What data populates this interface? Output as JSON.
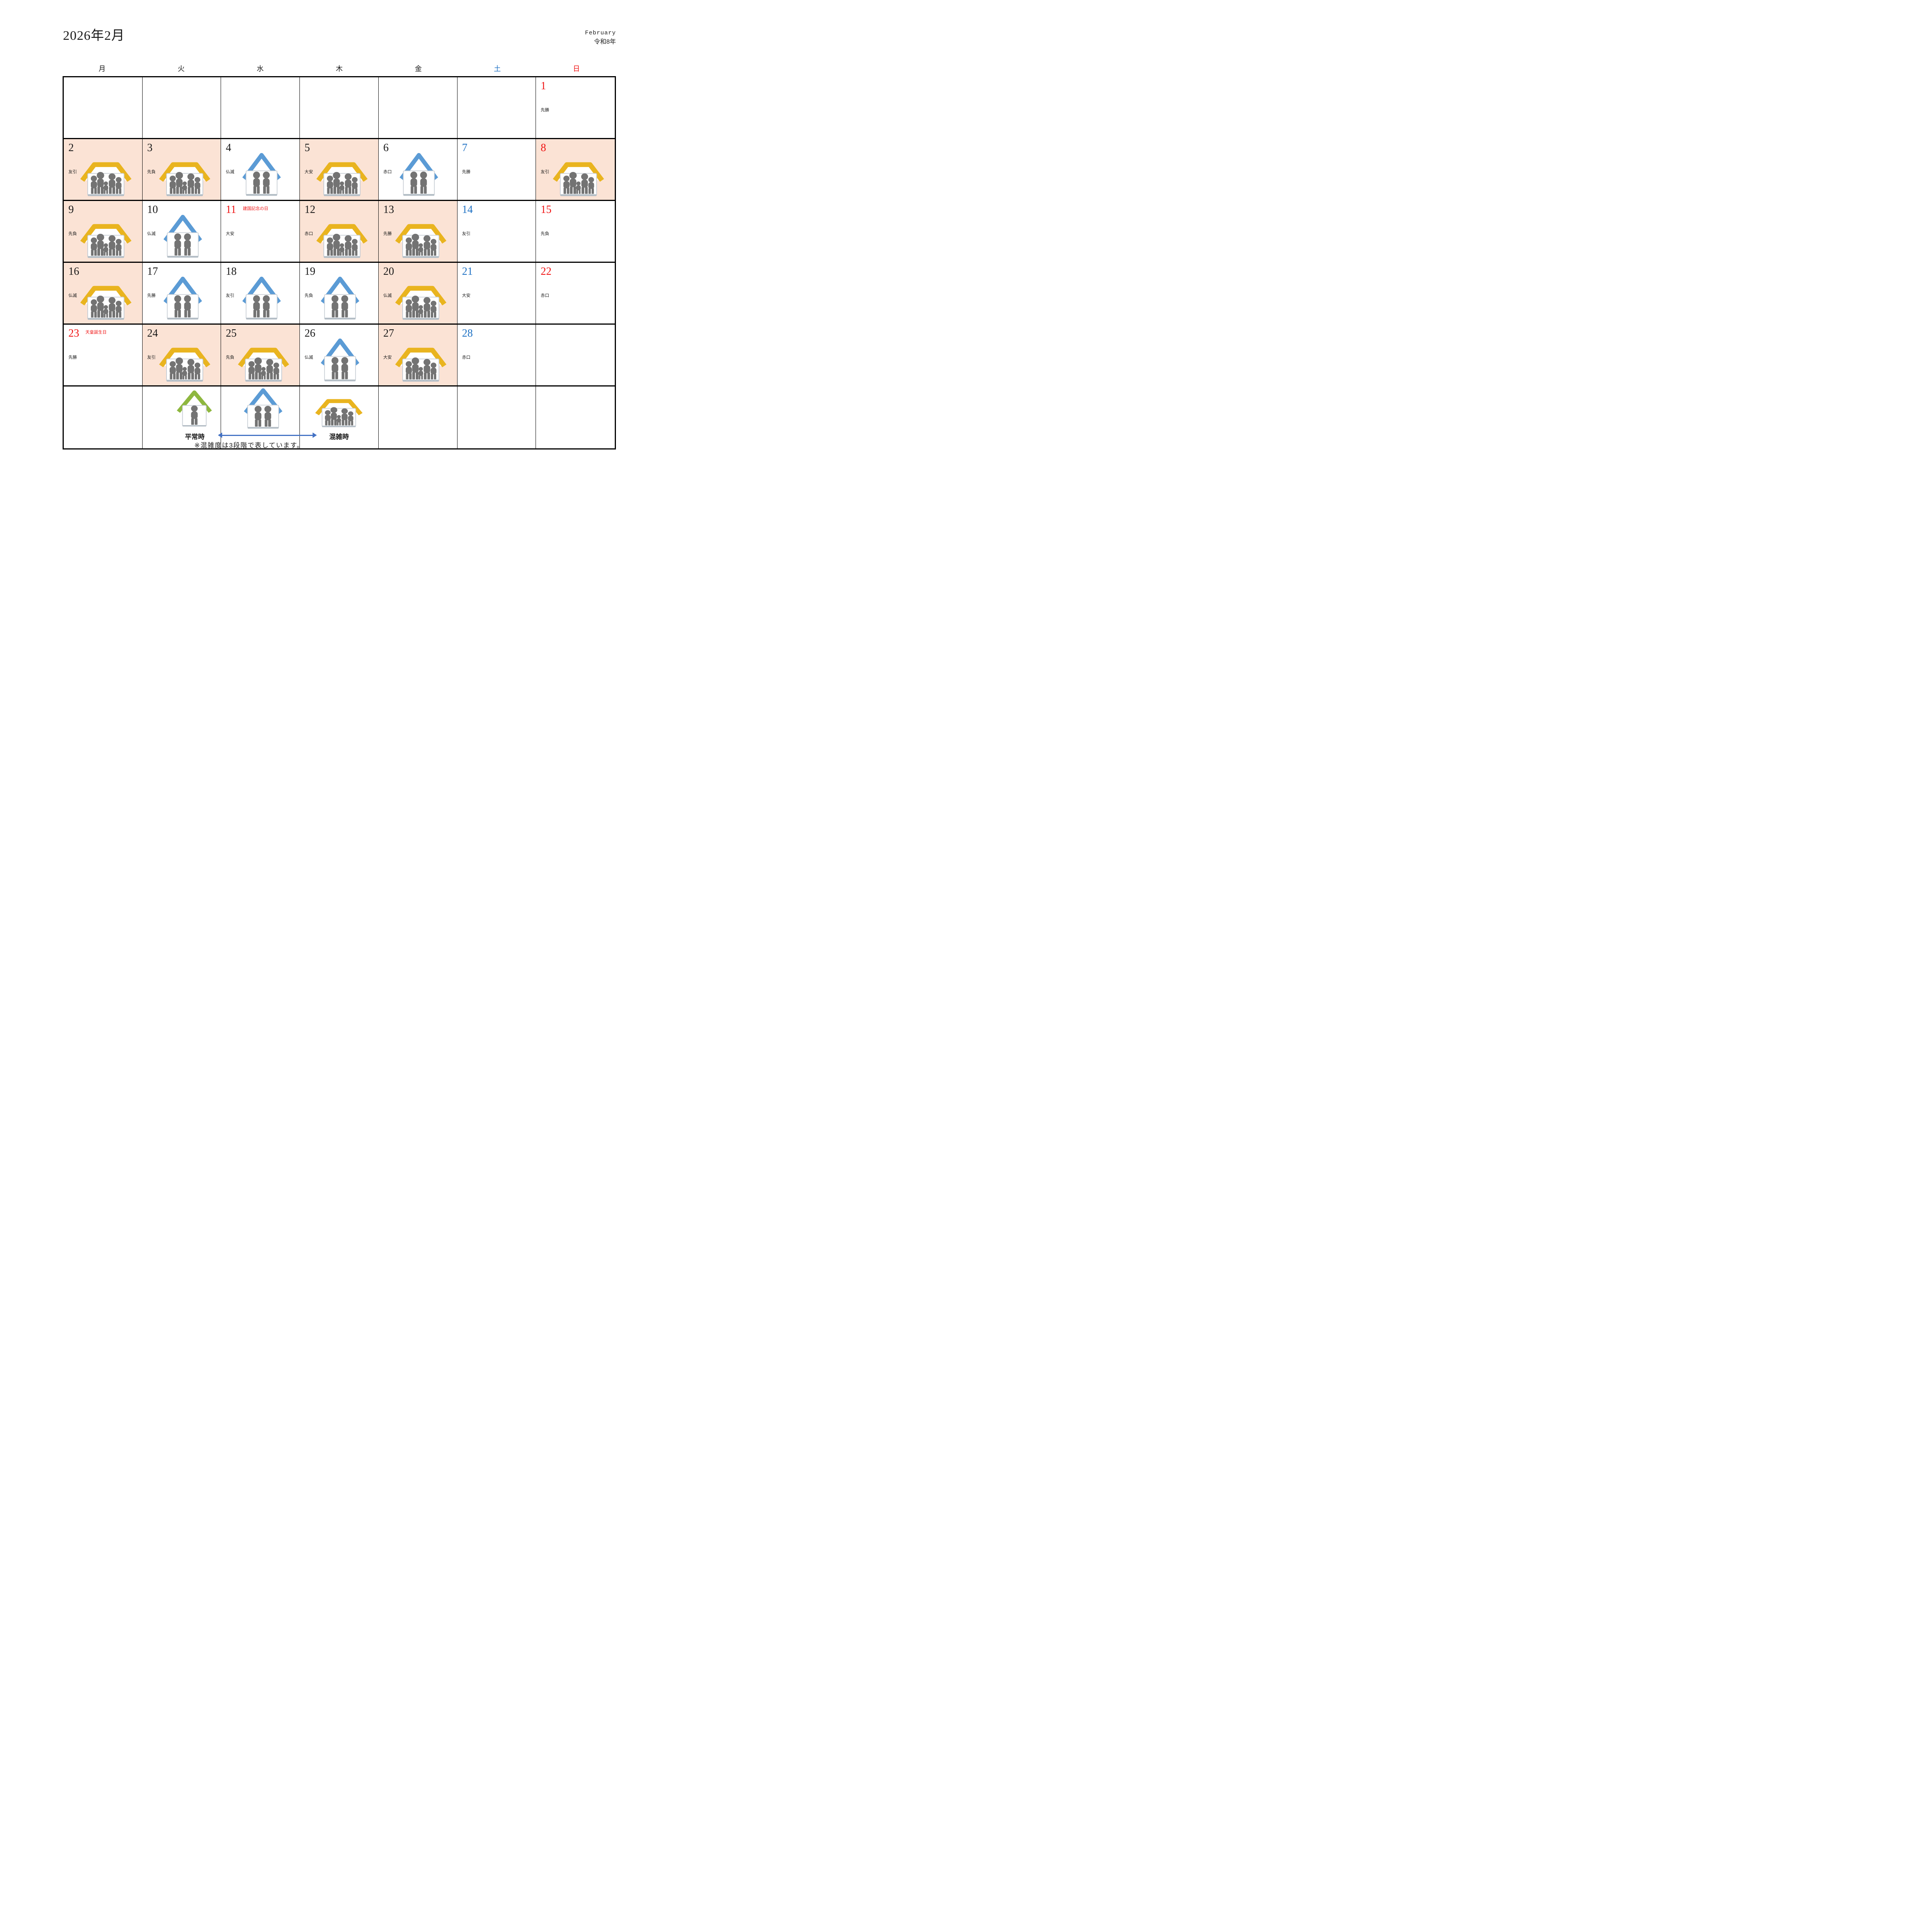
{
  "header": {
    "title": "2026年2月",
    "month_en": "February",
    "era_year": "令和8年"
  },
  "weekday_headers": [
    {
      "label": "月",
      "color": "#1a1a1a"
    },
    {
      "label": "火",
      "color": "#1a1a1a"
    },
    {
      "label": "水",
      "color": "#1a1a1a"
    },
    {
      "label": "木",
      "color": "#1a1a1a"
    },
    {
      "label": "金",
      "color": "#1a1a1a"
    },
    {
      "label": "土",
      "color": "#1F72C4"
    },
    {
      "label": "日",
      "color": "#F01212"
    }
  ],
  "days": [
    {
      "date": 1,
      "row": 0,
      "col": 6,
      "number_color": "red",
      "rokuyo": "先勝",
      "congestion": "none",
      "highlighted": false,
      "holiday": null
    },
    {
      "date": 2,
      "row": 1,
      "col": 0,
      "number_color": "black",
      "rokuyo": "友引",
      "congestion": "busy",
      "highlighted": true,
      "holiday": null
    },
    {
      "date": 3,
      "row": 1,
      "col": 1,
      "number_color": "black",
      "rokuyo": "先負",
      "congestion": "busy",
      "highlighted": true,
      "holiday": null
    },
    {
      "date": 4,
      "row": 1,
      "col": 2,
      "number_color": "black",
      "rokuyo": "仏滅",
      "congestion": "medium",
      "highlighted": false,
      "holiday": null
    },
    {
      "date": 5,
      "row": 1,
      "col": 3,
      "number_color": "black",
      "rokuyo": "大安",
      "congestion": "busy",
      "highlighted": true,
      "holiday": null
    },
    {
      "date": 6,
      "row": 1,
      "col": 4,
      "number_color": "black",
      "rokuyo": "赤口",
      "congestion": "medium",
      "highlighted": false,
      "holiday": null
    },
    {
      "date": 7,
      "row": 1,
      "col": 5,
      "number_color": "blue",
      "rokuyo": "先勝",
      "congestion": "none",
      "highlighted": false,
      "holiday": null
    },
    {
      "date": 8,
      "row": 1,
      "col": 6,
      "number_color": "red",
      "rokuyo": "友引",
      "congestion": "busy",
      "highlighted": true,
      "holiday": null
    },
    {
      "date": 9,
      "row": 2,
      "col": 0,
      "number_color": "black",
      "rokuyo": "先負",
      "congestion": "busy",
      "highlighted": true,
      "holiday": null
    },
    {
      "date": 10,
      "row": 2,
      "col": 1,
      "number_color": "black",
      "rokuyo": "仏滅",
      "congestion": "medium",
      "highlighted": false,
      "holiday": null
    },
    {
      "date": 11,
      "row": 2,
      "col": 2,
      "number_color": "red",
      "rokuyo": "大安",
      "congestion": "none",
      "highlighted": false,
      "holiday": "建国記念の日"
    },
    {
      "date": 12,
      "row": 2,
      "col": 3,
      "number_color": "black",
      "rokuyo": "赤口",
      "congestion": "busy",
      "highlighted": true,
      "holiday": null
    },
    {
      "date": 13,
      "row": 2,
      "col": 4,
      "number_color": "black",
      "rokuyo": "先勝",
      "congestion": "busy",
      "highlighted": true,
      "holiday": null
    },
    {
      "date": 14,
      "row": 2,
      "col": 5,
      "number_color": "blue",
      "rokuyo": "友引",
      "congestion": "none",
      "highlighted": false,
      "holiday": null
    },
    {
      "date": 15,
      "row": 2,
      "col": 6,
      "number_color": "red",
      "rokuyo": "先負",
      "congestion": "none",
      "highlighted": false,
      "holiday": null
    },
    {
      "date": 16,
      "row": 3,
      "col": 0,
      "number_color": "black",
      "rokuyo": "仏滅",
      "congestion": "busy",
      "highlighted": true,
      "holiday": null
    },
    {
      "date": 17,
      "row": 3,
      "col": 1,
      "number_color": "black",
      "rokuyo": "先勝",
      "congestion": "medium",
      "highlighted": false,
      "holiday": null
    },
    {
      "date": 18,
      "row": 3,
      "col": 2,
      "number_color": "black",
      "rokuyo": "友引",
      "congestion": "medium",
      "highlighted": false,
      "holiday": null
    },
    {
      "date": 19,
      "row": 3,
      "col": 3,
      "number_color": "black",
      "rokuyo": "先負",
      "congestion": "medium",
      "highlighted": false,
      "holiday": null
    },
    {
      "date": 20,
      "row": 3,
      "col": 4,
      "number_color": "black",
      "rokuyo": "仏滅",
      "congestion": "busy",
      "highlighted": true,
      "holiday": null
    },
    {
      "date": 21,
      "row": 3,
      "col": 5,
      "number_color": "blue",
      "rokuyo": "大安",
      "congestion": "none",
      "highlighted": false,
      "holiday": null
    },
    {
      "date": 22,
      "row": 3,
      "col": 6,
      "number_color": "red",
      "rokuyo": "赤口",
      "congestion": "none",
      "highlighted": false,
      "holiday": null
    },
    {
      "date": 23,
      "row": 4,
      "col": 0,
      "number_color": "red",
      "rokuyo": "先勝",
      "congestion": "none",
      "highlighted": false,
      "holiday": "天皇誕生日"
    },
    {
      "date": 24,
      "row": 4,
      "col": 1,
      "number_color": "black",
      "rokuyo": "友引",
      "congestion": "busy",
      "highlighted": true,
      "holiday": null
    },
    {
      "date": 25,
      "row": 4,
      "col": 2,
      "number_color": "black",
      "rokuyo": "先負",
      "congestion": "busy",
      "highlighted": true,
      "holiday": null
    },
    {
      "date": 26,
      "row": 4,
      "col": 3,
      "number_color": "black",
      "rokuyo": "仏滅",
      "congestion": "medium",
      "highlighted": false,
      "holiday": null
    },
    {
      "date": 27,
      "row": 4,
      "col": 4,
      "number_color": "black",
      "rokuyo": "大安",
      "congestion": "busy",
      "highlighted": true,
      "holiday": null
    },
    {
      "date": 28,
      "row": 4,
      "col": 5,
      "number_color": "blue",
      "rokuyo": "赤口",
      "congestion": "none",
      "highlighted": false,
      "holiday": null
    }
  ],
  "legend": {
    "normal_label": "平常時",
    "busy_label": "混雑時",
    "note": "※混雑度は3段階で表しています。",
    "levels": [
      {
        "level": "normal",
        "icon": "single-person-house-icon",
        "people": 1,
        "roof": "green"
      },
      {
        "level": "medium",
        "icon": "two-person-house-icon",
        "people": 2,
        "roof": "blue"
      },
      {
        "level": "busy",
        "icon": "crowded-house-icon",
        "people": 5,
        "roof": "gold"
      }
    ]
  },
  "colors": {
    "peach_highlight": "#FBE3D5",
    "roof_busy_gold": "#E9B41F",
    "roof_medium_blue": "#5B9BD5",
    "roof_normal_green": "#8EB73F",
    "person_gray": "#737373",
    "house_outline": "#C9CFD6",
    "house_shadow": "#B4BEC6",
    "saturday_blue": "#1F72C4",
    "sunday_red": "#F01212",
    "holiday_red": "#F01212",
    "arrow_blue": "#4472C4",
    "grid_black": "#000000",
    "text_black": "#1a1a1a"
  }
}
